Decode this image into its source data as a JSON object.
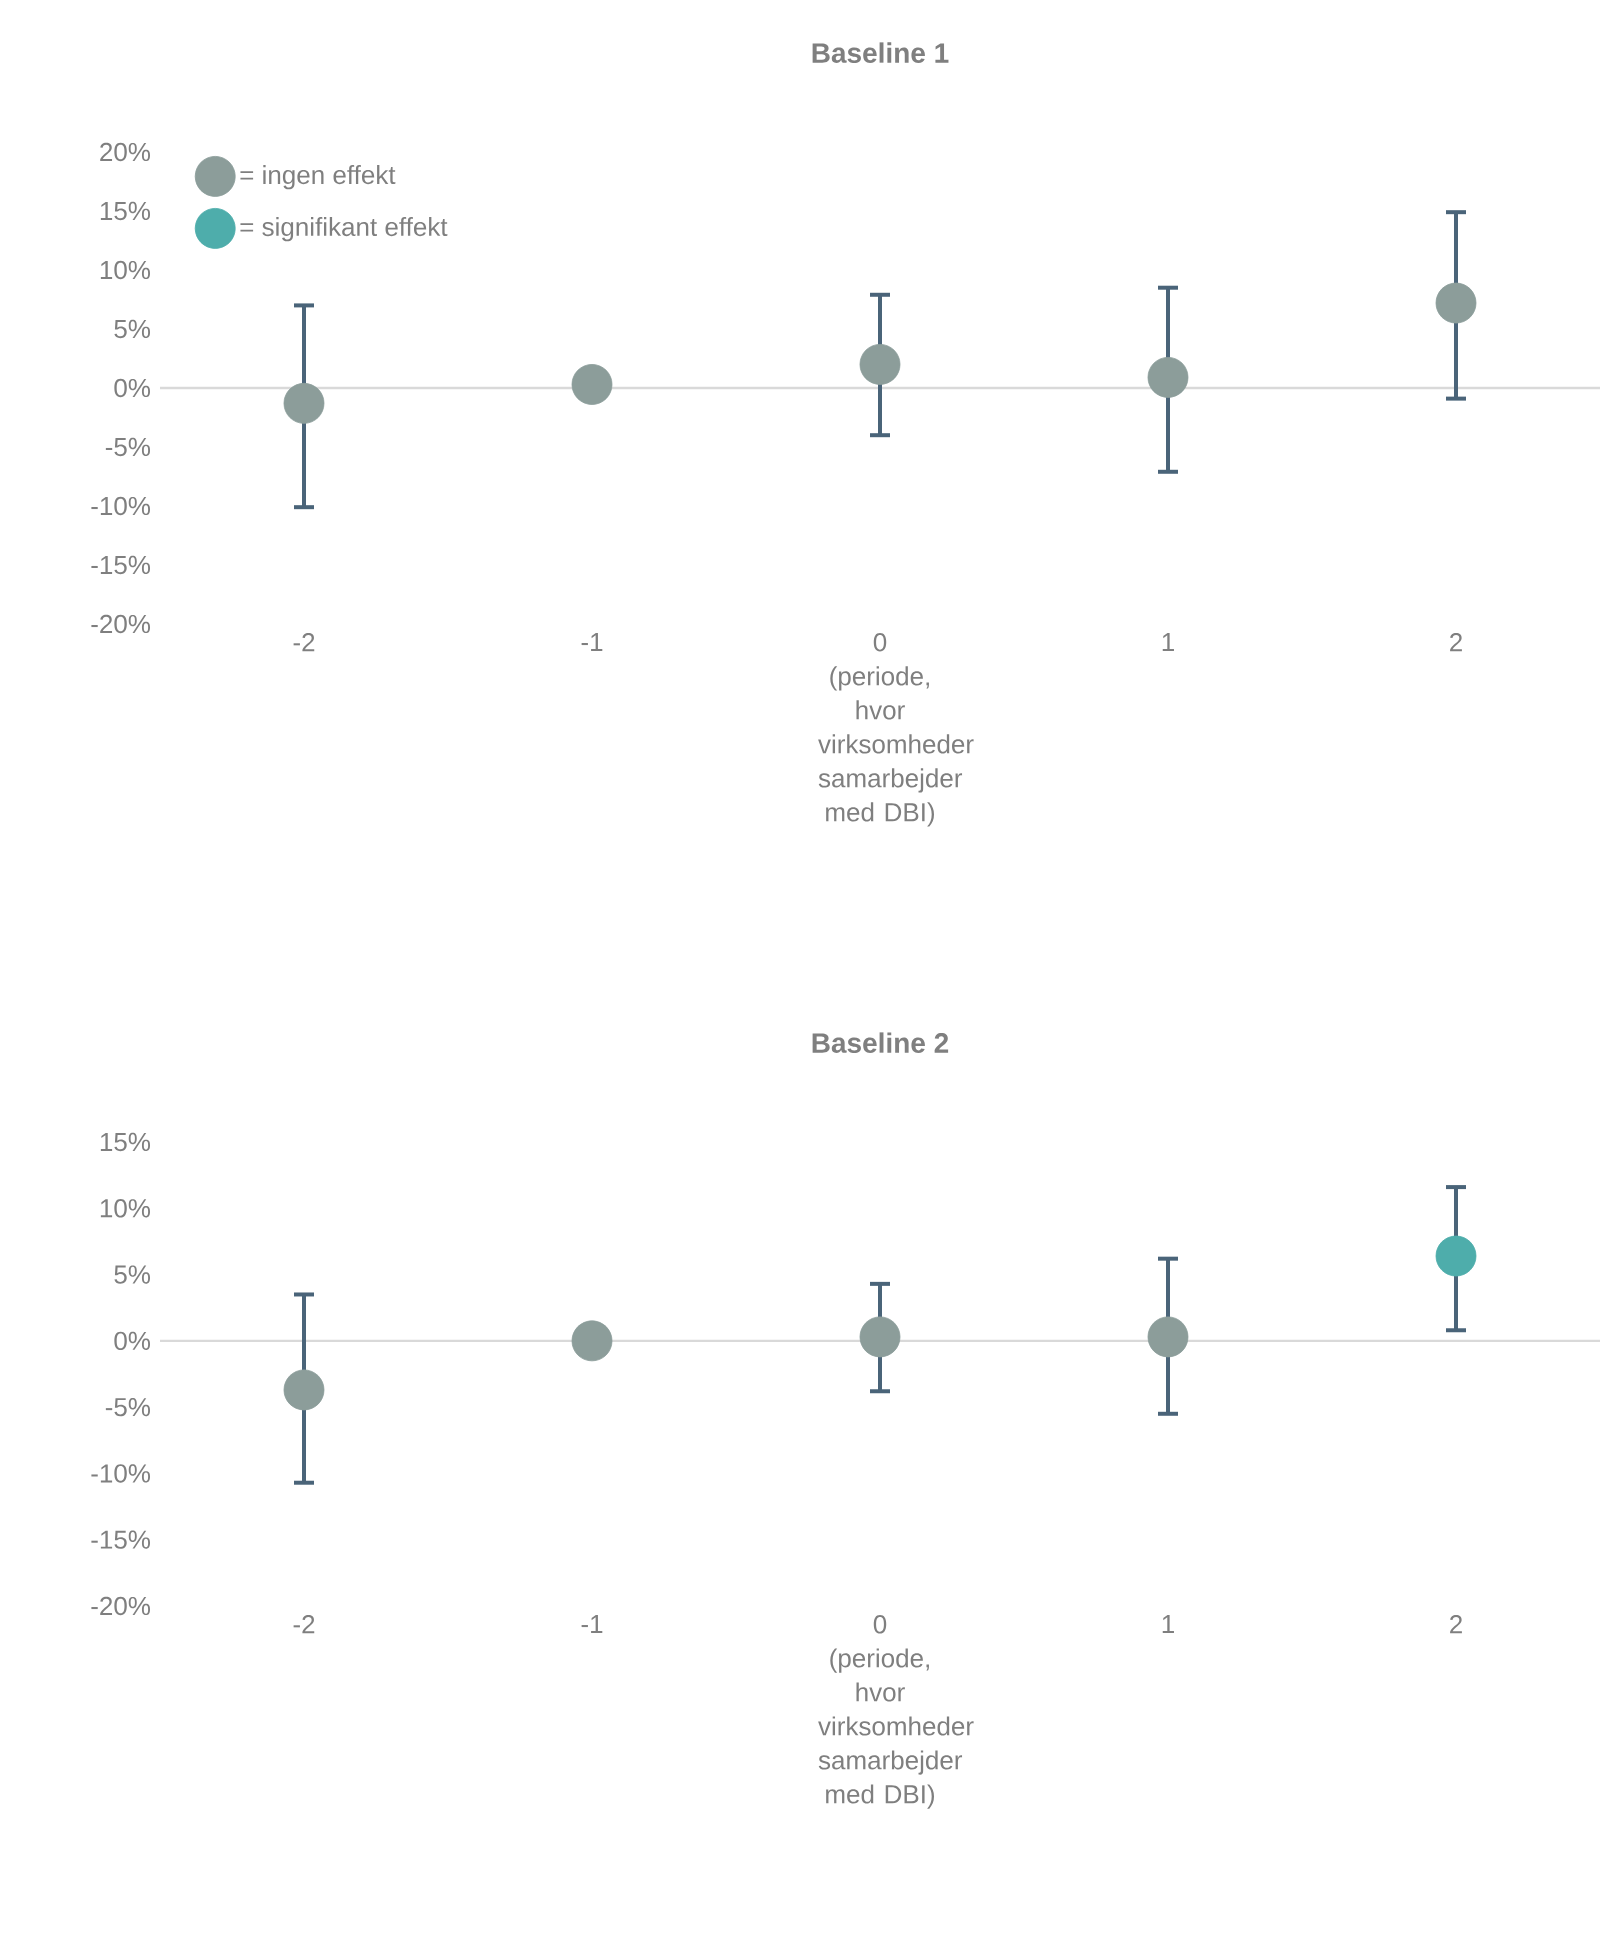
{
  "chart_data": [
    {
      "type": "scatter",
      "title": "Baseline 1",
      "categories": [
        "-2",
        "-1",
        "0 (periode, hvor virksomheder samarbejder med DBI)",
        "1",
        "2"
      ],
      "ylim": [
        -20,
        20
      ],
      "yticks": [
        {
          "value": -20,
          "label": "-20%"
        },
        {
          "value": -15,
          "label": "-15%"
        },
        {
          "value": -10,
          "label": "-10%"
        },
        {
          "value": -5,
          "label": "-5%"
        },
        {
          "value": 0,
          "label": "0%"
        },
        {
          "value": 5,
          "label": "5%"
        },
        {
          "value": 10,
          "label": "10%"
        },
        {
          "value": 15,
          "label": "15%"
        },
        {
          "value": 20,
          "label": "20%"
        }
      ],
      "series": [
        {
          "name": "= ingen effekt",
          "color": "#8c9d9a",
          "values": [
            -1.3,
            0.3,
            2.0,
            0.9,
            7.2
          ],
          "errors": [
            [
              -10.1,
              7.0
            ],
            null,
            [
              -4.0,
              7.9
            ],
            [
              -7.1,
              8.5
            ],
            [
              -0.9,
              14.9
            ]
          ]
        },
        {
          "name": "= signifikant effekt",
          "color": "#4eadab",
          "values": [
            null,
            null,
            null,
            null,
            null
          ]
        }
      ],
      "ref_lines": [
        {
          "axis": "y",
          "value": 0,
          "color": "#d9d9d9"
        }
      ],
      "marker": "circle",
      "grid": false,
      "legend": "top left"
    },
    {
      "type": "scatter",
      "title": "Baseline 2",
      "categories": [
        "-2",
        "-1",
        "0 (periode, hvor virksomheder samarbejder med DBI)",
        "1",
        "2"
      ],
      "ylim": [
        -20,
        15
      ],
      "yticks": [
        {
          "value": -20,
          "label": "-20%"
        },
        {
          "value": -15,
          "label": "-15%"
        },
        {
          "value": -10,
          "label": "-10%"
        },
        {
          "value": -5,
          "label": "-5%"
        },
        {
          "value": 0,
          "label": "0%"
        },
        {
          "value": 5,
          "label": "5%"
        },
        {
          "value": 10,
          "label": "10%"
        },
        {
          "value": 15,
          "label": "15%"
        }
      ],
      "series": [
        {
          "color": "#8c9d9a",
          "values": [
            -3.7,
            0.0,
            0.3,
            0.3,
            null
          ],
          "errors": [
            [
              -10.7,
              3.5
            ],
            null,
            [
              -3.8,
              4.3
            ],
            [
              -5.5,
              6.2
            ],
            null
          ]
        },
        {
          "color": "#4eadab",
          "values": [
            null,
            null,
            null,
            null,
            6.4
          ],
          "errors": [
            null,
            null,
            null,
            null,
            [
              0.8,
              11.6
            ]
          ]
        }
      ],
      "ref_lines": [
        {
          "axis": "y",
          "value": 0,
          "color": "#d9d9d9"
        }
      ],
      "marker": "circle",
      "grid": false,
      "legend": false
    }
  ]
}
